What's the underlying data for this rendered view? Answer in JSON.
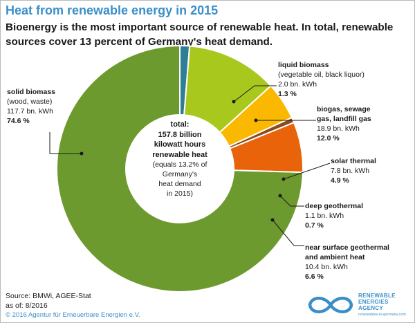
{
  "header": {
    "title": "Heat from renewable energy in 2015",
    "subtitle": "Bioenergy is the most important source of renewable heat. In total, renewable sources cover 13 percent of Germany's heat demand."
  },
  "chart_data": {
    "type": "pie",
    "title": "Heat from renewable energy in 2015",
    "unit": "bn. kWh",
    "total_label": [
      "total:",
      "157.8 billion",
      "kilowatt hours",
      "renewable heat"
    ],
    "total_note": [
      "(equals 13.2% of",
      "Germany's",
      "heat demand",
      "in 2015)"
    ],
    "slices": [
      {
        "name": "liquid biomass",
        "detail": "(vegetable oil, black liquor)",
        "value": 2.0,
        "value_label": "2.0 bn. kWh",
        "percent": 1.3,
        "percent_label": "1.3 %",
        "color": "#2e7f95"
      },
      {
        "name": "biogas, sewage gas, landfill gas",
        "value": 18.9,
        "value_label": "18.9 bn. kWh",
        "percent": 12.0,
        "percent_label": "12.0 %",
        "color": "#a9c81e"
      },
      {
        "name": "solar thermal",
        "value": 7.8,
        "value_label": "7.8 bn. kWh",
        "percent": 4.9,
        "percent_label": "4.9 %",
        "color": "#fab800"
      },
      {
        "name": "deep geothermal",
        "value": 1.1,
        "value_label": "1.1 bn. kWh",
        "percent": 0.7,
        "percent_label": "0.7 %",
        "color": "#8c4a1e"
      },
      {
        "name": "near surface geothermal and ambient heat",
        "value": 10.4,
        "value_label": "10.4 bn. kWh",
        "percent": 6.6,
        "percent_label": "6.6 %",
        "color": "#e8630a"
      },
      {
        "name": "solid biomass",
        "detail": "(wood, waste)",
        "value": 117.7,
        "value_label": "117.7 bn. kWh",
        "percent": 74.6,
        "percent_label": "74.6 %",
        "color": "#6d9a2e"
      }
    ]
  },
  "labels": {
    "liquid": {
      "l1": "liquid biomass",
      "l2": "(vegetable oil, black liquor)",
      "l3": "2.0 bn. kWh",
      "l4": "1.3 %"
    },
    "biogas": {
      "l1": "biogas, sewage",
      "l2": "gas, landfill gas",
      "l3": "18.9 bn. kWh",
      "l4": "12.0 %"
    },
    "solar": {
      "l1": "solar thermal",
      "l2": "7.8 bn. kWh",
      "l3": "4.9 %"
    },
    "deep": {
      "l1": "deep geothermal",
      "l2": "1.1 bn. kWh",
      "l3": "0.7 %"
    },
    "near": {
      "l1": "near surface geothermal",
      "l2": "and ambient heat",
      "l3": "10.4 bn. kWh",
      "l4": "6.6 %"
    },
    "solid": {
      "l1": "solid biomass",
      "l2": "(wood, waste)",
      "l3": "117.7 bn. kWh",
      "l4": "74.6 %"
    }
  },
  "footer": {
    "source": "Source: BMWi, AGEE-Stat",
    "asof": "as of: 8/2016",
    "copyright": "© 2016 Agentur für Erneuerbare Energien e.V.",
    "logo_line1": "RENEWABLE",
    "logo_line2": "ENERGIES",
    "logo_line3": "AGENCY",
    "logo_url": "renewables-in-germany.com"
  },
  "colors": {
    "title": "#3b8fc9",
    "leader": "#1a1a1a",
    "logo": "#3b8fc9"
  }
}
